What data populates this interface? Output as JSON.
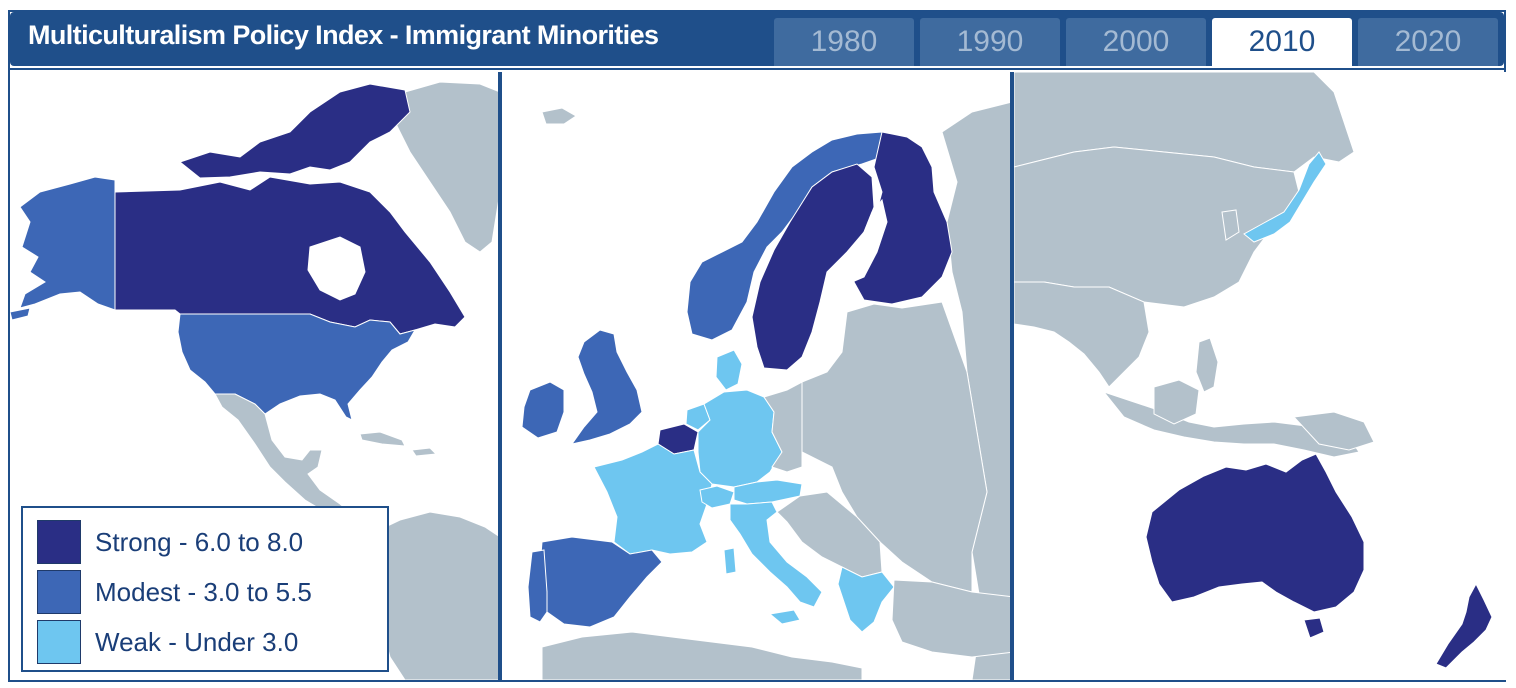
{
  "title": "Multiculturalism Policy Index - Immigrant Minorities",
  "years": [
    "1980",
    "1990",
    "2000",
    "2010",
    "2020"
  ],
  "selected_year": "2010",
  "colors": {
    "strong": "#2a2e85",
    "modest": "#3d67b6",
    "weak": "#6ec6f0",
    "no_data": "#b3c1cb",
    "water": "#ffffff",
    "border": "#1f4f8a"
  },
  "legend": {
    "strong": "Strong - 6.0 to 8.0",
    "modest": "Modest - 3.0 to 5.5",
    "weak": "Weak - Under 3.0"
  },
  "map_data": {
    "strong": [
      "Canada",
      "Sweden",
      "Finland",
      "Belgium",
      "Australia",
      "New Zealand"
    ],
    "modest": [
      "United States",
      "Norway",
      "United Kingdom",
      "Ireland",
      "Spain",
      "Portugal"
    ],
    "weak": [
      "Netherlands",
      "Germany",
      "Denmark",
      "France",
      "Switzerland",
      "Austria",
      "Italy",
      "Greece",
      "Japan"
    ]
  }
}
